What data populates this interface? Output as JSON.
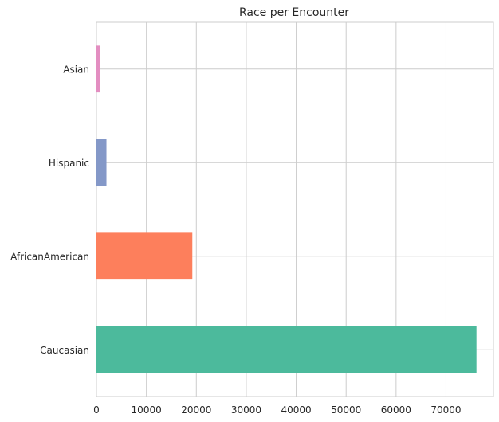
{
  "chart_data": {
    "type": "bar",
    "orientation": "horizontal",
    "title": "Race per Encounter",
    "xlabel": "",
    "ylabel": "",
    "categories": [
      "Caucasian",
      "AfricanAmerican",
      "Hispanic",
      "Asian"
    ],
    "values": [
      76100,
      19200,
      2000,
      640
    ],
    "colors": [
      "#4cba9c",
      "#fd7f5c",
      "#8498c8",
      "#e38ec1"
    ],
    "xlim": [
      0,
      79500
    ],
    "xticks": [
      0,
      10000,
      20000,
      30000,
      40000,
      50000,
      60000,
      70000
    ],
    "xtick_labels": [
      "0",
      "10000",
      "20000",
      "30000",
      "40000",
      "50000",
      "60000",
      "70000"
    ],
    "grid": true,
    "legend": "none"
  }
}
